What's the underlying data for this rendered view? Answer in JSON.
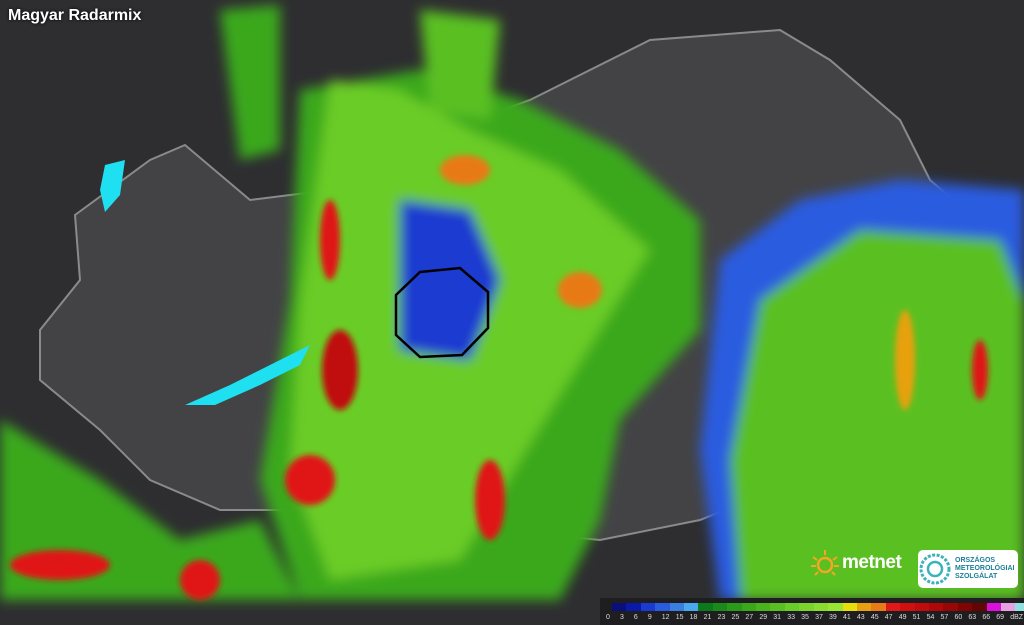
{
  "title": "Magyar Radarmix",
  "legend": {
    "unit": "dBZ",
    "ticks": [
      "0",
      "3",
      "6",
      "9",
      "12",
      "15",
      "18",
      "21",
      "23",
      "25",
      "27",
      "29",
      "31",
      "33",
      "35",
      "37",
      "39",
      "41",
      "43",
      "45",
      "47",
      "49",
      "51",
      "54",
      "57",
      "60",
      "63",
      "66",
      "69"
    ],
    "colors": [
      "#0a0f7a",
      "#0a1aa8",
      "#1a3ad0",
      "#2a5ce0",
      "#3a7ee0",
      "#4aa8ee",
      "#0a7a1a",
      "#1a8a1a",
      "#2a9a1a",
      "#3aa81a",
      "#4ab41e",
      "#5ac022",
      "#6acc28",
      "#7ad42e",
      "#8adc30",
      "#9ae434",
      "#e6e00a",
      "#e8a010",
      "#e87a18",
      "#e01818",
      "#d01010",
      "#c00c0c",
      "#b00808",
      "#980606",
      "#800404",
      "#640404",
      "#dc10dc",
      "#e8a0e0",
      "#90e0e0"
    ]
  },
  "logos": {
    "metnet": "metnet",
    "omsz": [
      "ORSZÁGOS",
      "METEOROLÓGIAI",
      "SZOLGÁLAT"
    ]
  },
  "colors": {
    "background": "#2b2b2d",
    "lake": "#1ee0f0",
    "border": "#8a8a8a",
    "circle": "#000000"
  }
}
